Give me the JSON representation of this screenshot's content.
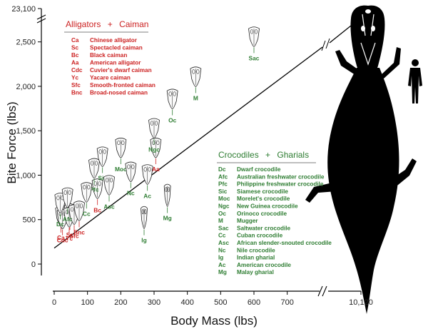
{
  "chart_data": {
    "type": "scatter",
    "title": "",
    "xlabel": "Body  Mass  (lbs)",
    "ylabel": "Bite  Force  (lbs)",
    "xlim": [
      0,
      750
    ],
    "ylim": [
      0,
      2650
    ],
    "x_ticks": [
      "0",
      "100",
      "200",
      "300",
      "400",
      "500",
      "600",
      "700"
    ],
    "x_break_tick": "10,120",
    "y_ticks": [
      "0",
      "500",
      "1,000",
      "1,500",
      "2,000",
      "2,500"
    ],
    "y_break_tick": "23,100",
    "colors": {
      "alligator": "#cc2222",
      "crocodile": "#2e7d32",
      "axis": "#000000",
      "silhouette": "#000000"
    },
    "series": [
      {
        "name": "Alligators + Caiman",
        "points": [
          {
            "label": "Ca",
            "x": 20,
            "y": 330
          },
          {
            "label": "Sc",
            "x": 47,
            "y": 360
          },
          {
            "label": "Bc",
            "x": 130,
            "y": 640
          },
          {
            "label": "Aa",
            "x": 305,
            "y": 1100
          },
          {
            "label": "Cdc",
            "x": 25,
            "y": 300
          },
          {
            "label": "Yc",
            "x": 45,
            "y": 320
          },
          {
            "label": "Sfc",
            "x": 60,
            "y": 350
          },
          {
            "label": "Bnc",
            "x": 75,
            "y": 390
          }
        ]
      },
      {
        "name": "Crocodiles + Gharials",
        "points": [
          {
            "label": "Dc",
            "x": 18,
            "y": 480
          },
          {
            "label": "Afc",
            "x": 40,
            "y": 540
          },
          {
            "label": "Pfc",
            "x": 120,
            "y": 870
          },
          {
            "label": "Sic",
            "x": 145,
            "y": 1000
          },
          {
            "label": "Moc",
            "x": 200,
            "y": 1100
          },
          {
            "label": "Ngc",
            "x": 300,
            "y": 1320
          },
          {
            "label": "Oc",
            "x": 355,
            "y": 1650
          },
          {
            "label": "M",
            "x": 425,
            "y": 1900
          },
          {
            "label": "Sac",
            "x": 600,
            "y": 2350
          },
          {
            "label": "Cc",
            "x": 97,
            "y": 600
          },
          {
            "label": "Asc",
            "x": 165,
            "y": 680
          },
          {
            "label": "Nc",
            "x": 230,
            "y": 830
          },
          {
            "label": "Ig",
            "x": 270,
            "y": 300
          },
          {
            "label": "Ac",
            "x": 280,
            "y": 800
          },
          {
            "label": "Mg",
            "x": 340,
            "y": 550
          }
        ]
      }
    ]
  },
  "legend_alligators": {
    "title_a": "Alligators",
    "title_plus": "+",
    "title_b": "Caiman",
    "entries": [
      {
        "code": "Ca",
        "name": "Chinese alligator"
      },
      {
        "code": "Sc",
        "name": "Spectacled caiman"
      },
      {
        "code": "Bc",
        "name": "Black caiman"
      },
      {
        "code": "Aa",
        "name": "American alligator"
      },
      {
        "code": "Cdc",
        "name": "Cuvier's dwarf caiman"
      },
      {
        "code": "Yc",
        "name": "Yacare caiman"
      },
      {
        "code": "Sfc",
        "name": "Smooth-fronted caiman"
      },
      {
        "code": "Bnc",
        "name": "Broad-nosed caiman"
      }
    ]
  },
  "legend_crocodiles": {
    "title_a": "Crocodiles",
    "title_plus": "+",
    "title_b": "Gharials",
    "entries": [
      {
        "code": "Dc",
        "name": "Dwarf crocodile"
      },
      {
        "code": "Afc",
        "name": "Australian freshwater crocodile"
      },
      {
        "code": "Pfc",
        "name": "Philippine freshwater crocodile"
      },
      {
        "code": "Sic",
        "name": "Siamese crocodile"
      },
      {
        "code": "Moc",
        "name": "Morelet's crocodile"
      },
      {
        "code": "Ngc",
        "name": "New Guinea crocodile"
      },
      {
        "code": "Oc",
        "name": "Orinoco crocodile"
      },
      {
        "code": "M",
        "name": "Mugger"
      },
      {
        "code": "Sac",
        "name": "Saltwater crocodile"
      },
      {
        "code": "Cc",
        "name": "Cuban crocodile"
      },
      {
        "code": "Asc",
        "name": "African slender-snouted crocodile"
      },
      {
        "code": "Nc",
        "name": "Nile crocodile"
      },
      {
        "code": "Ig",
        "name": "Indian gharial"
      },
      {
        "code": "Ac",
        "name": "American crocodile"
      },
      {
        "code": "Mg",
        "name": "Malay gharial"
      }
    ]
  }
}
